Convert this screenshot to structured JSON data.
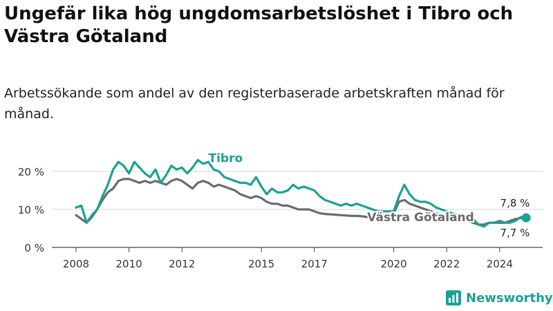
{
  "header": {
    "title": "Ungefär lika hög ungdomsarbetslöshet i Tibro och Västra Götaland",
    "subtitle": "Arbetssökande som andel av den registerbaserade arbetskraften månad för månad."
  },
  "brand": {
    "name": "Newsworthy",
    "color": "#1aa194",
    "icon": "newsworthy-logo-icon"
  },
  "chart_data": {
    "type": "line",
    "title": "Ungefär lika hög ungdomsarbetslöshet i Tibro och Västra Götaland",
    "subtitle": "Arbetssökande som andel av den registerbaserade arbetskraften månad för månad.",
    "xlabel": "",
    "ylabel": "",
    "xlim": [
      2008,
      2025.5
    ],
    "ylim": [
      0,
      23
    ],
    "x_ticks": [
      2008,
      2010,
      2012,
      2015,
      2017,
      2020,
      2022,
      2024
    ],
    "x_tick_labels": [
      "2008",
      "2010",
      "2012",
      "2015",
      "2017",
      "2020",
      "2022",
      "2024"
    ],
    "y_ticks": [
      0,
      10,
      20
    ],
    "y_tick_labels": [
      "0 %",
      "10 %",
      "20 %"
    ],
    "grid": true,
    "series": [
      {
        "name": "Tibro",
        "color": "#1aa194",
        "label_x": 2013.0,
        "label_y": 22.5,
        "end_label": "7,8 %",
        "x": [
          2008.0,
          2008.2,
          2008.4,
          2008.6,
          2008.8,
          2009.0,
          2009.2,
          2009.4,
          2009.6,
          2009.8,
          2010.0,
          2010.2,
          2010.4,
          2010.6,
          2010.8,
          2011.0,
          2011.2,
          2011.4,
          2011.6,
          2011.8,
          2012.0,
          2012.2,
          2012.4,
          2012.6,
          2012.8,
          2013.0,
          2013.2,
          2013.4,
          2013.6,
          2013.8,
          2014.0,
          2014.2,
          2014.4,
          2014.6,
          2014.8,
          2015.0,
          2015.2,
          2015.4,
          2015.6,
          2015.8,
          2016.0,
          2016.2,
          2016.4,
          2016.6,
          2016.8,
          2017.0,
          2017.2,
          2017.4,
          2017.6,
          2017.8,
          2018.0,
          2018.2,
          2018.4,
          2018.6,
          2018.8,
          2019.0,
          2019.2,
          2019.4,
          2019.6,
          2019.8,
          2020.0,
          2020.2,
          2020.4,
          2020.6,
          2020.8,
          2021.0,
          2021.2,
          2021.4,
          2021.6,
          2021.8,
          2022.0,
          2022.2,
          2022.4,
          2022.6,
          2022.8,
          2023.0,
          2023.2,
          2023.4,
          2023.6,
          2023.8,
          2024.0,
          2024.2,
          2024.4,
          2024.6,
          2024.8,
          2025.0
        ],
        "values": [
          10.5,
          11.0,
          6.5,
          8.5,
          10.0,
          13.5,
          16.5,
          20.5,
          22.5,
          21.5,
          19.5,
          22.5,
          21.0,
          19.5,
          18.5,
          20.5,
          17.0,
          19.0,
          21.5,
          20.5,
          21.0,
          19.5,
          21.0,
          23.0,
          22.0,
          22.5,
          20.5,
          20.0,
          18.5,
          18.0,
          17.5,
          17.0,
          17.0,
          16.5,
          18.5,
          16.0,
          14.0,
          15.5,
          14.5,
          14.5,
          15.0,
          16.5,
          15.5,
          16.0,
          15.5,
          15.0,
          13.5,
          12.5,
          12.0,
          11.5,
          11.0,
          11.5,
          11.0,
          11.5,
          11.0,
          10.5,
          10.0,
          9.5,
          9.5,
          9.5,
          9.5,
          13.5,
          16.5,
          14.0,
          12.5,
          12.0,
          12.0,
          11.5,
          10.5,
          10.0,
          9.5,
          9.0,
          8.5,
          8.5,
          8.0,
          7.5,
          6.0,
          5.5,
          6.5,
          6.5,
          7.0,
          6.5,
          6.5,
          7.0,
          8.0,
          7.8
        ]
      },
      {
        "name": "Västra Götaland",
        "color": "#6b6b6b",
        "label_x": 2019.0,
        "label_y": 6.9,
        "end_label": "7,7 %",
        "x": [
          2008.0,
          2008.2,
          2008.4,
          2008.6,
          2008.8,
          2009.0,
          2009.2,
          2009.4,
          2009.6,
          2009.8,
          2010.0,
          2010.2,
          2010.4,
          2010.6,
          2010.8,
          2011.0,
          2011.2,
          2011.4,
          2011.6,
          2011.8,
          2012.0,
          2012.2,
          2012.4,
          2012.6,
          2012.8,
          2013.0,
          2013.2,
          2013.4,
          2013.6,
          2013.8,
          2014.0,
          2014.2,
          2014.4,
          2014.6,
          2014.8,
          2015.0,
          2015.2,
          2015.4,
          2015.6,
          2015.8,
          2016.0,
          2016.2,
          2016.4,
          2016.6,
          2016.8,
          2017.0,
          2017.2,
          2017.4,
          2017.6,
          2017.8,
          2018.0,
          2018.2,
          2018.4,
          2018.6,
          2018.8,
          2019.0,
          2019.2,
          2019.4,
          2019.6,
          2019.8,
          2020.0,
          2020.2,
          2020.4,
          2020.6,
          2020.8,
          2021.0,
          2021.2,
          2021.4,
          2021.6,
          2021.8,
          2022.0,
          2022.2,
          2022.4,
          2022.6,
          2022.8,
          2023.0,
          2023.2,
          2023.4,
          2023.6,
          2023.8,
          2024.0,
          2024.2,
          2024.4,
          2024.6,
          2024.8,
          2025.0
        ],
        "values": [
          8.5,
          7.5,
          6.5,
          8.0,
          10.0,
          12.5,
          14.5,
          15.5,
          17.5,
          18.0,
          18.0,
          17.5,
          17.0,
          17.5,
          17.0,
          17.5,
          17.0,
          16.5,
          17.5,
          18.0,
          17.5,
          16.5,
          15.5,
          17.0,
          17.5,
          17.0,
          16.0,
          16.5,
          16.0,
          15.5,
          15.0,
          14.0,
          13.5,
          13.0,
          13.5,
          13.0,
          12.0,
          11.5,
          11.5,
          11.0,
          11.0,
          10.5,
          10.0,
          10.0,
          10.0,
          9.5,
          9.0,
          8.8,
          8.7,
          8.6,
          8.5,
          8.4,
          8.3,
          8.3,
          8.2,
          8.0,
          8.0,
          8.1,
          8.3,
          8.5,
          9.0,
          12.0,
          12.5,
          11.5,
          11.0,
          10.5,
          10.0,
          9.5,
          9.0,
          8.5,
          8.0,
          7.5,
          7.0,
          7.0,
          7.0,
          6.5,
          6.0,
          6.0,
          6.5,
          6.5,
          6.5,
          6.5,
          7.0,
          7.5,
          7.7,
          7.7
        ]
      }
    ]
  }
}
